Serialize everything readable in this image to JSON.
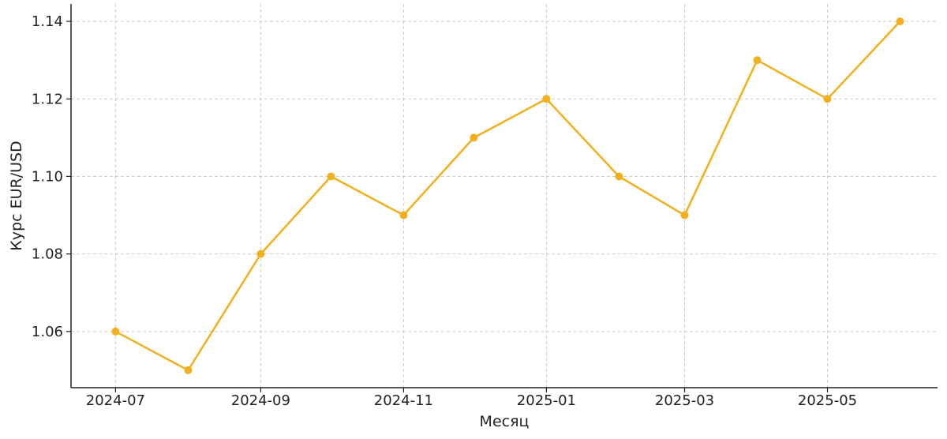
{
  "chart_data": {
    "type": "line",
    "title": "",
    "xlabel": "Месяц",
    "ylabel": "Курс EUR/USD",
    "x": [
      "2024-07-01",
      "2024-08-01",
      "2024-09-01",
      "2024-10-01",
      "2024-11-01",
      "2024-12-01",
      "2025-01-01",
      "2025-02-01",
      "2025-03-01",
      "2025-04-01",
      "2025-05-01",
      "2025-06-01"
    ],
    "series": [
      {
        "values": [
          1.06,
          1.05,
          1.08,
          1.1,
          1.09,
          1.11,
          1.12,
          1.1,
          1.09,
          1.13,
          1.12,
          1.14
        ],
        "color": "#f2b01e"
      }
    ],
    "x_ticks": [
      "2024-07",
      "2024-09",
      "2024-11",
      "2025-01",
      "2025-03",
      "2025-05"
    ],
    "y_ticks": [
      "1.06",
      "1.08",
      "1.10",
      "1.12",
      "1.14"
    ],
    "xlim": [
      "2024-06-12",
      "2025-06-17"
    ],
    "ylim": [
      1.0455,
      1.1445
    ],
    "grid": true,
    "legend": "none"
  }
}
